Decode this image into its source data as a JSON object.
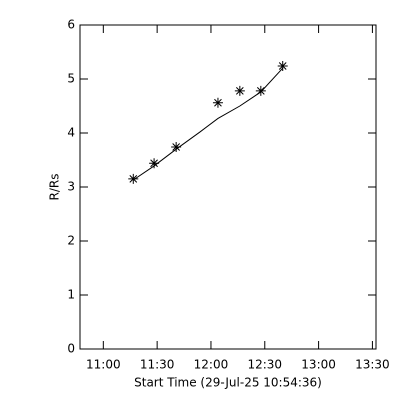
{
  "chart_data": {
    "type": "line",
    "xlabel": "Start Time (29-Jul-25 10:54:36)",
    "ylabel": "R/Rs",
    "x": [
      676.7,
      688.3,
      700.6,
      723.9,
      736.1,
      747.8,
      760.0
    ],
    "series": [
      {
        "color": "#000000",
        "marker": "asterisk",
        "line": false,
        "values": [
          3.15,
          3.44,
          3.74,
          4.56,
          4.78,
          4.78,
          5.24
        ]
      },
      {
        "color": "#000000",
        "marker": "none",
        "line": true,
        "values": [
          3.13,
          3.39,
          3.7,
          4.02,
          4.27,
          4.5,
          4.76,
          5.2
        ],
        "x": [
          676.7,
          688.3,
          700.6,
          713.9,
          723.9,
          736.1,
          747.8,
          760.0
        ]
      }
    ],
    "xlim": [
      647,
      812
    ],
    "ylim": [
      0,
      6
    ],
    "xticks": [
      {
        "value": 660,
        "label": "11:00"
      },
      {
        "value": 690,
        "label": "11:30"
      },
      {
        "value": 720,
        "label": "12:00"
      },
      {
        "value": 750,
        "label": "12:30"
      },
      {
        "value": 780,
        "label": "13:00"
      },
      {
        "value": 810,
        "label": "13:30"
      }
    ],
    "yticks": [
      0,
      1,
      2,
      3,
      4,
      5,
      6
    ]
  }
}
